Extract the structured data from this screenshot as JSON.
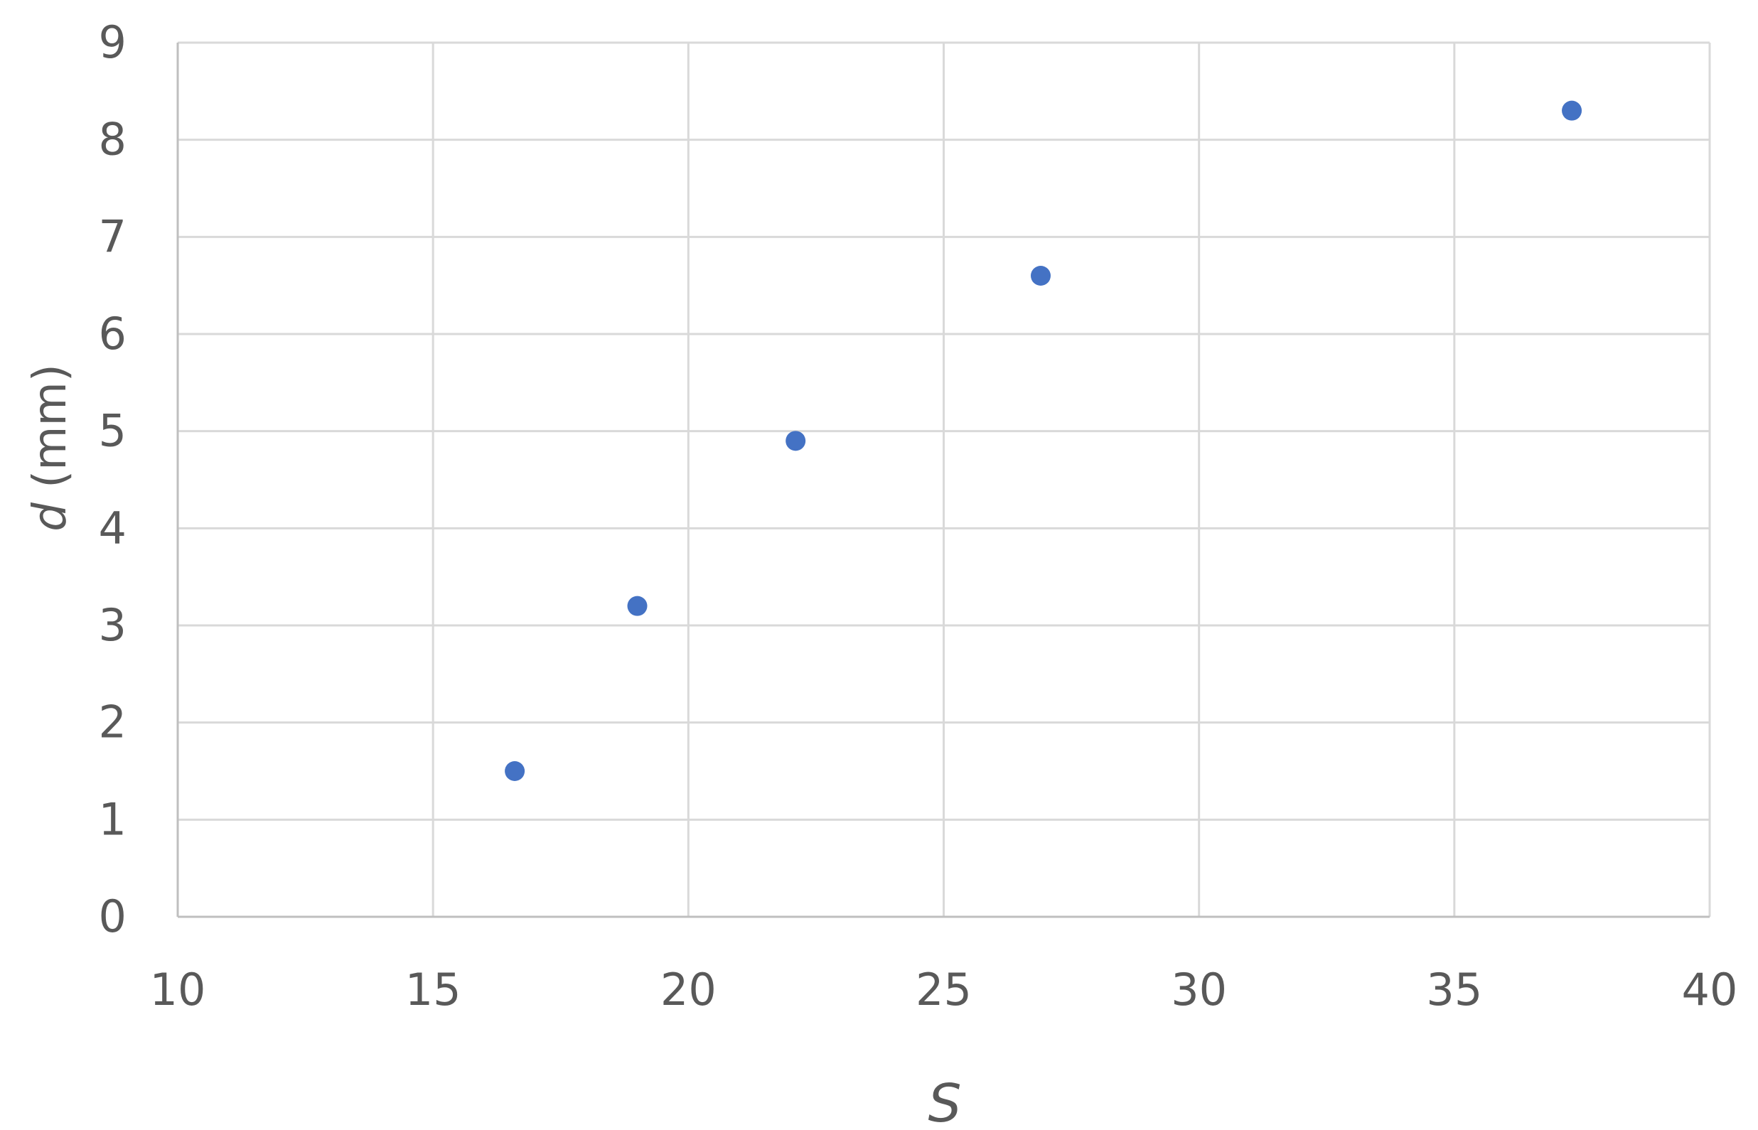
{
  "chart_data": {
    "type": "scatter",
    "title": "",
    "xlabel": "S",
    "ylabel_var": "d",
    "ylabel_unit": "(mm)",
    "xlim": [
      10,
      40
    ],
    "ylim": [
      0,
      9
    ],
    "x_ticks": [
      10,
      15,
      20,
      25,
      30,
      35,
      40
    ],
    "y_ticks": [
      0,
      1,
      2,
      3,
      4,
      5,
      6,
      7,
      8,
      9
    ],
    "grid": true,
    "legend": "none",
    "colors": {
      "marker": "#4472C4",
      "grid": "#d9d9d9",
      "axis": "#bfbfbf",
      "text": "#595959"
    },
    "series": [
      {
        "points": [
          {
            "x": 16.6,
            "y": 1.5
          },
          {
            "x": 19.0,
            "y": 3.2
          },
          {
            "x": 22.1,
            "y": 4.9
          },
          {
            "x": 26.9,
            "y": 6.6
          },
          {
            "x": 37.3,
            "y": 8.3
          }
        ]
      }
    ]
  }
}
